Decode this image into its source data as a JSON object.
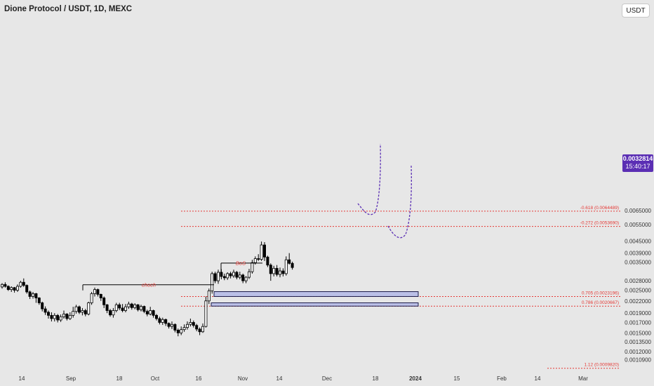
{
  "header": {
    "title": "Dione Protocol / USDT, 1D, MEXC"
  },
  "toolbar": {
    "currency_button": "USDT"
  },
  "price_badge": {
    "value": "0.0032814",
    "countdown": "15:40:17"
  },
  "colors": {
    "up": "#ffffff",
    "down": "#000000",
    "fib_line": "#e53935",
    "zone": "#b3b8e6",
    "path": "#5b2fb4",
    "annotation": "#e53935"
  },
  "chart_data": {
    "type": "candlestick",
    "title": "Dione Protocol / USDT, 1D, MEXC",
    "xlabel": "",
    "ylabel": "",
    "y_scale": "log",
    "ylim": [
      0.00097,
      0.0082
    ],
    "y_ticks": [
      "0.0065000",
      "0.0055000",
      "0.0045000",
      "0.0039000",
      "0.0035000",
      "0.0028000",
      "0.0025000",
      "0.0022000",
      "0.0019000",
      "0.0017000",
      "0.0015000",
      "0.0013500",
      "0.0012000",
      "0.0010900"
    ],
    "x_ticks": [
      "14",
      "Sep",
      "18",
      "Oct",
      "16",
      "Nov",
      "14",
      "Dec",
      "18",
      "2024",
      "15",
      "Feb",
      "14",
      "Mar"
    ],
    "grid": false,
    "last_price": 0.0032814,
    "fib_levels": [
      {
        "label": "-0.618 (0.0064489)",
        "value": 0.0064489
      },
      {
        "label": "-0.272 (0.0053690)",
        "value": 0.005369
      },
      {
        "label": "0.705 (0.0023196)",
        "value": 0.0023196
      },
      {
        "label": "0.786 (0.0020667)",
        "value": 0.0020667
      },
      {
        "label": "1.12 (0.0009820)",
        "value": 0.000982
      }
    ],
    "zones": [
      {
        "low": 0.0023196,
        "high": 0.0024588
      },
      {
        "low": 0.0020667,
        "high": 0.00215
      }
    ],
    "annotations": [
      {
        "text": "choch",
        "price": 0.00267
      },
      {
        "text": "BoS",
        "price": 0.00346
      }
    ],
    "candles": [
      [
        0.0026,
        0.00268,
        0.00272,
        0.00255
      ],
      [
        0.00268,
        0.00262,
        0.00275,
        0.00258
      ],
      [
        0.00262,
        0.00252,
        0.00265,
        0.00248
      ],
      [
        0.00252,
        0.00258,
        0.00262,
        0.00245
      ],
      [
        0.00258,
        0.0025,
        0.0026,
        0.00243
      ],
      [
        0.0025,
        0.00262,
        0.00268,
        0.00245
      ],
      [
        0.00262,
        0.00275,
        0.0028,
        0.00258
      ],
      [
        0.00275,
        0.00265,
        0.00288,
        0.0026
      ],
      [
        0.00265,
        0.00245,
        0.00268,
        0.0024
      ],
      [
        0.00245,
        0.00232,
        0.00249,
        0.00225
      ],
      [
        0.00232,
        0.0024,
        0.00245,
        0.00226
      ],
      [
        0.0024,
        0.00228,
        0.00242,
        0.00215
      ],
      [
        0.00228,
        0.00215,
        0.0023,
        0.0021
      ],
      [
        0.00215,
        0.002,
        0.00218,
        0.00194
      ],
      [
        0.002,
        0.00192,
        0.00206,
        0.00186
      ],
      [
        0.00192,
        0.00185,
        0.00196,
        0.00178
      ],
      [
        0.00185,
        0.00178,
        0.00192,
        0.00172
      ],
      [
        0.00178,
        0.00185,
        0.0019,
        0.00172
      ],
      [
        0.00185,
        0.00175,
        0.00188,
        0.0017
      ],
      [
        0.00175,
        0.00182,
        0.00187,
        0.00171
      ],
      [
        0.00182,
        0.00188,
        0.00196,
        0.00178
      ],
      [
        0.00188,
        0.00178,
        0.0019,
        0.00174
      ],
      [
        0.00178,
        0.00185,
        0.00192,
        0.00175
      ],
      [
        0.00185,
        0.00194,
        0.00205,
        0.0018
      ],
      [
        0.00194,
        0.00205,
        0.0021,
        0.00189
      ],
      [
        0.00205,
        0.00192,
        0.00208,
        0.00188
      ],
      [
        0.00192,
        0.00196,
        0.00202,
        0.00185
      ],
      [
        0.00196,
        0.00188,
        0.002,
        0.00183
      ],
      [
        0.00188,
        0.00215,
        0.00218,
        0.00185
      ],
      [
        0.00215,
        0.0024,
        0.00245,
        0.0021
      ],
      [
        0.0024,
        0.00252,
        0.00258,
        0.00232
      ],
      [
        0.00252,
        0.00238,
        0.00255,
        0.00232
      ],
      [
        0.00238,
        0.00228,
        0.0024,
        0.0022
      ],
      [
        0.00228,
        0.0021,
        0.00232,
        0.00202
      ],
      [
        0.0021,
        0.00196,
        0.00212,
        0.0019
      ],
      [
        0.00196,
        0.00186,
        0.002,
        0.00182
      ],
      [
        0.00186,
        0.00196,
        0.00202,
        0.0018
      ],
      [
        0.00196,
        0.0021,
        0.00215,
        0.00192
      ],
      [
        0.0021,
        0.00202,
        0.00215,
        0.00197
      ],
      [
        0.00202,
        0.00196,
        0.00212,
        0.00192
      ],
      [
        0.00196,
        0.00205,
        0.00212,
        0.00192
      ],
      [
        0.00205,
        0.00212,
        0.00218,
        0.002
      ],
      [
        0.00212,
        0.00203,
        0.00215,
        0.00198
      ],
      [
        0.00203,
        0.0021,
        0.00214,
        0.00199
      ],
      [
        0.0021,
        0.00198,
        0.00212,
        0.00194
      ],
      [
        0.00198,
        0.00206,
        0.0021,
        0.00194
      ],
      [
        0.00206,
        0.00194,
        0.00208,
        0.0019
      ],
      [
        0.00194,
        0.00188,
        0.00198,
        0.00183
      ],
      [
        0.00188,
        0.00196,
        0.00205,
        0.00185
      ],
      [
        0.00196,
        0.00185,
        0.00198,
        0.0018
      ],
      [
        0.00185,
        0.00178,
        0.00188,
        0.00174
      ],
      [
        0.00178,
        0.0017,
        0.00182,
        0.00166
      ],
      [
        0.0017,
        0.00176,
        0.0018,
        0.00165
      ],
      [
        0.00176,
        0.00168,
        0.00178,
        0.00163
      ],
      [
        0.00168,
        0.00162,
        0.0017,
        0.00158
      ],
      [
        0.00162,
        0.00166,
        0.00172,
        0.00157
      ],
      [
        0.00166,
        0.00155,
        0.00168,
        0.00151
      ],
      [
        0.00155,
        0.0015,
        0.00158,
        0.00144
      ],
      [
        0.0015,
        0.00156,
        0.00162,
        0.00146
      ],
      [
        0.00156,
        0.0016,
        0.00166,
        0.00152
      ],
      [
        0.0016,
        0.00166,
        0.00172,
        0.00156
      ],
      [
        0.00166,
        0.0017,
        0.00178,
        0.00162
      ],
      [
        0.0017,
        0.00164,
        0.00174,
        0.0016
      ],
      [
        0.00164,
        0.00157,
        0.00167,
        0.00153
      ],
      [
        0.00157,
        0.00152,
        0.0016,
        0.00146
      ],
      [
        0.00152,
        0.00162,
        0.00168,
        0.0015
      ],
      [
        0.00162,
        0.0022,
        0.00232,
        0.0016
      ],
      [
        0.0022,
        0.00248,
        0.00255,
        0.00212
      ],
      [
        0.00248,
        0.00305,
        0.00312,
        0.0024
      ],
      [
        0.00305,
        0.0028,
        0.00312,
        0.00272
      ],
      [
        0.0028,
        0.0031,
        0.0032,
        0.0027
      ],
      [
        0.0031,
        0.00295,
        0.00322,
        0.00285
      ],
      [
        0.00295,
        0.0029,
        0.00305,
        0.00282
      ],
      [
        0.0029,
        0.00305,
        0.0031,
        0.00283
      ],
      [
        0.00305,
        0.00297,
        0.00312,
        0.00288
      ],
      [
        0.00297,
        0.0031,
        0.0032,
        0.0029
      ],
      [
        0.0031,
        0.00292,
        0.00315,
        0.00285
      ],
      [
        0.00292,
        0.003,
        0.00312,
        0.00285
      ],
      [
        0.003,
        0.0028,
        0.00305,
        0.00272
      ],
      [
        0.0028,
        0.00292,
        0.00296,
        0.00272
      ],
      [
        0.00292,
        0.00312,
        0.00323,
        0.00286
      ],
      [
        0.00312,
        0.00348,
        0.0036,
        0.00305
      ],
      [
        0.00348,
        0.00365,
        0.00375,
        0.0034
      ],
      [
        0.00365,
        0.00362,
        0.00385,
        0.00355
      ],
      [
        0.00362,
        0.0043,
        0.00448,
        0.00355
      ],
      [
        0.0043,
        0.00372,
        0.00445,
        0.00355
      ],
      [
        0.00372,
        0.00338,
        0.00378,
        0.0033
      ],
      [
        0.00338,
        0.00305,
        0.00345,
        0.0028
      ],
      [
        0.00305,
        0.00325,
        0.00335,
        0.00295
      ],
      [
        0.00325,
        0.00302,
        0.00338,
        0.00295
      ],
      [
        0.00302,
        0.00315,
        0.00328,
        0.00292
      ],
      [
        0.00315,
        0.00305,
        0.00325,
        0.00295
      ],
      [
        0.00305,
        0.0036,
        0.00375,
        0.00298
      ],
      [
        0.0036,
        0.00345,
        0.0039,
        0.0034
      ],
      [
        0.00345,
        0.0032814,
        0.00352,
        0.0032
      ]
    ]
  }
}
